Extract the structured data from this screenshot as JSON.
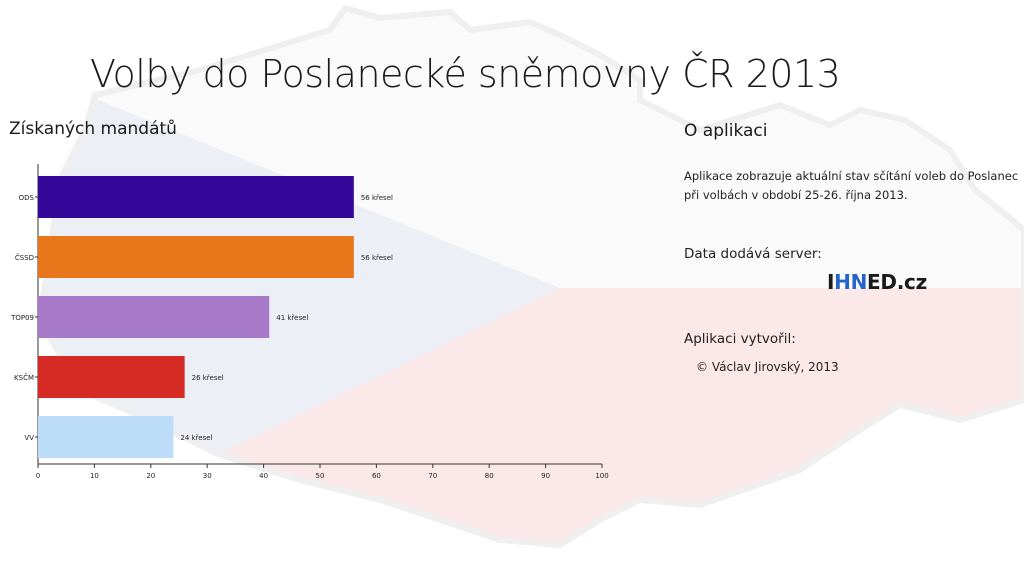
{
  "header": {
    "title": "Volby do Poslanecké sněmovny ČR 2013",
    "subtitle": "Získaných mandátů"
  },
  "chart_data": {
    "type": "bar",
    "orientation": "horizontal",
    "categories": [
      "ODS",
      "ČSSD",
      "TOP09",
      "KSČM",
      "VV"
    ],
    "values": [
      56,
      56,
      41,
      26,
      24
    ],
    "data_labels": [
      "56 křesel",
      "56 křesel",
      "41 křesel",
      "26 křesel",
      "24 křesel"
    ],
    "colors": [
      "#35089a",
      "#e8771b",
      "#a679c9",
      "#d62b24",
      "#bcdcf7"
    ],
    "xlim": [
      0,
      100
    ],
    "xticks": [
      0,
      10,
      20,
      30,
      40,
      50,
      60,
      70,
      80,
      90,
      100
    ],
    "grid": false
  },
  "about": {
    "title": "O aplikaci",
    "desc_line1": "Aplikace zobrazuje aktuální stav sčítání voleb do Poslanec",
    "desc_line2": "při volbách v období 25-26. října 2013.",
    "data_label": "Data dodává server:",
    "logo_part1": "I",
    "logo_part2": "HN",
    "logo_part3": "ED.cz",
    "author_label": "Aplikaci vytvořil:",
    "author": "© Václav Jirovský, 2013"
  }
}
